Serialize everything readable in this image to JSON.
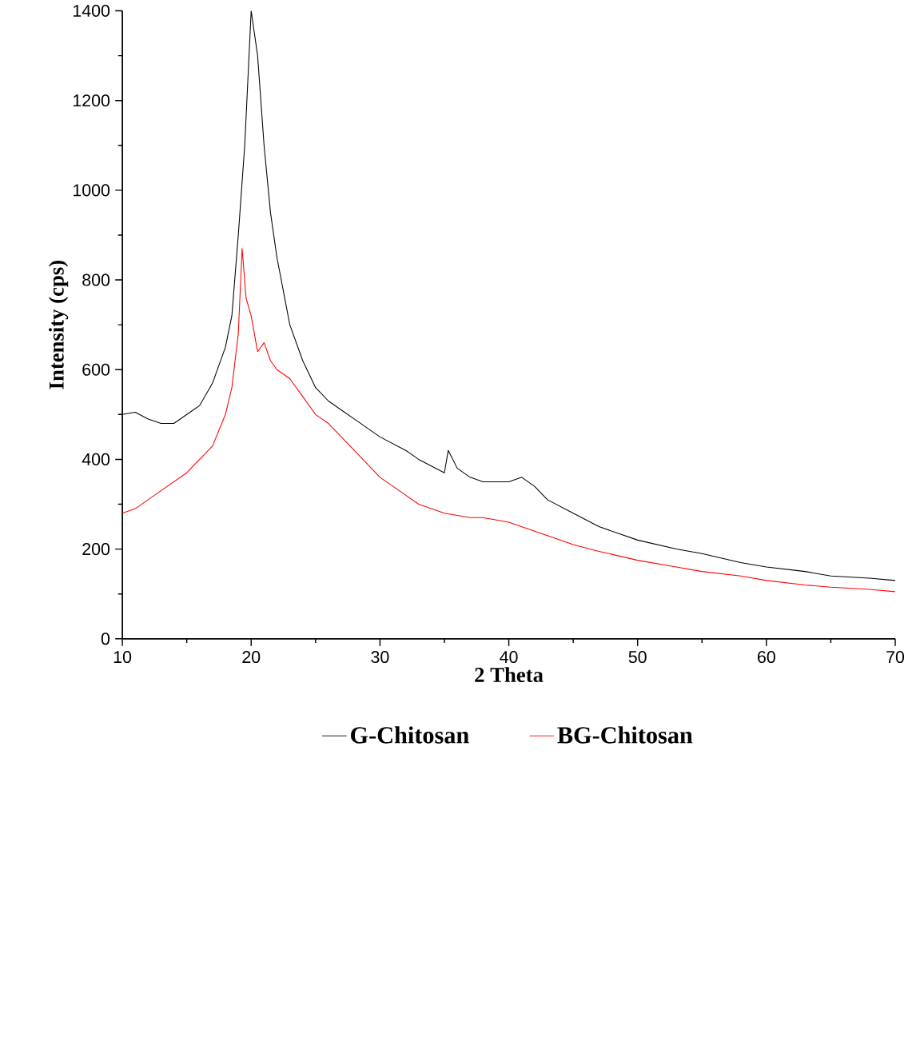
{
  "chart_data": {
    "type": "line",
    "xlabel": "2 Theta",
    "ylabel": "Intensity (cps)",
    "xlim": [
      10,
      70
    ],
    "ylim": [
      0,
      1400
    ],
    "xticks": [
      10,
      20,
      30,
      40,
      50,
      60,
      70
    ],
    "yticks": [
      0,
      200,
      400,
      600,
      800,
      1000,
      1200,
      1400
    ],
    "legend": "bottom",
    "marker": "none",
    "line_style": "solid",
    "grid": false,
    "series": [
      {
        "name": "G-Chitosan",
        "color": "#000000",
        "x": [
          10,
          11,
          12,
          13,
          14,
          15,
          16,
          17,
          18,
          18.5,
          19,
          19.5,
          20,
          20.5,
          21,
          21.5,
          22,
          23,
          24,
          25,
          26,
          27,
          28,
          30,
          32,
          33,
          35,
          35.3,
          36,
          37,
          38,
          40,
          41,
          42,
          43,
          45,
          47,
          50,
          53,
          55,
          58,
          60,
          63,
          65,
          68,
          70
        ],
        "values": [
          500,
          505,
          490,
          480,
          480,
          500,
          520,
          570,
          650,
          720,
          900,
          1100,
          1400,
          1300,
          1100,
          950,
          850,
          700,
          620,
          560,
          530,
          510,
          490,
          450,
          420,
          400,
          370,
          420,
          380,
          360,
          350,
          350,
          360,
          340,
          310,
          280,
          250,
          220,
          200,
          190,
          170,
          160,
          150,
          140,
          135,
          130
        ]
      },
      {
        "name": "BG-Chitosan",
        "color": "#ff0000",
        "x": [
          10,
          11,
          12,
          13,
          14,
          15,
          16,
          17,
          18,
          18.5,
          19,
          19.3,
          19.6,
          20,
          20.5,
          21,
          21.5,
          22,
          23,
          24,
          25,
          26,
          27,
          28,
          30,
          32,
          33,
          35,
          37,
          38,
          40,
          42,
          43,
          45,
          47,
          50,
          53,
          55,
          58,
          60,
          63,
          65,
          68,
          70
        ],
        "values": [
          280,
          290,
          310,
          330,
          350,
          370,
          400,
          430,
          500,
          560,
          680,
          870,
          760,
          720,
          640,
          660,
          620,
          600,
          580,
          540,
          500,
          480,
          450,
          420,
          360,
          320,
          300,
          280,
          270,
          270,
          260,
          240,
          230,
          210,
          195,
          175,
          160,
          150,
          140,
          130,
          120,
          115,
          110,
          105
        ]
      }
    ]
  }
}
